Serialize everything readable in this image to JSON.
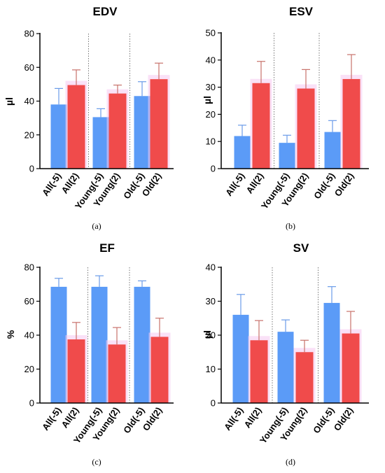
{
  "colors": {
    "left_bar": "#5B9BF7",
    "right_bar": "#F04B4B",
    "left_error": "#6A9BE8",
    "right_error": "#C8726B",
    "glow": "#F6C8F0"
  },
  "chart_data": [
    {
      "type": "bar",
      "title": "EDV",
      "ylabel": "µl",
      "caption": "(a)",
      "ylim": [
        0,
        80
      ],
      "yticks": [
        0,
        20,
        40,
        60,
        80
      ],
      "grid": false,
      "categories": [
        "All(-5)",
        "All(2)",
        "Young(-5)",
        "Young(2)",
        "Old(-5)",
        "Old(2)"
      ],
      "values": [
        38,
        49.5,
        30.5,
        44.5,
        43,
        53
      ],
      "errors": [
        9.5,
        9,
        5,
        5,
        8.5,
        9.5
      ],
      "bar_colors": [
        "left_bar",
        "right_bar",
        "left_bar",
        "right_bar",
        "left_bar",
        "right_bar"
      ]
    },
    {
      "type": "bar",
      "title": "ESV",
      "ylabel": "µl",
      "caption": "(b)",
      "ylim": [
        0,
        50
      ],
      "yticks": [
        0,
        10,
        20,
        30,
        40,
        50
      ],
      "grid": false,
      "categories": [
        "All(-5)",
        "All(2)",
        "Young(-5)",
        "Young(2)",
        "Old(-5)",
        "Old(2)"
      ],
      "values": [
        12,
        31.5,
        9.5,
        29.5,
        13.5,
        33
      ],
      "errors": [
        4,
        8,
        2.8,
        7,
        4.2,
        9
      ],
      "bar_colors": [
        "left_bar",
        "right_bar",
        "left_bar",
        "right_bar",
        "left_bar",
        "right_bar"
      ]
    },
    {
      "type": "bar",
      "title": "EF",
      "ylabel": "%",
      "caption": "(c)",
      "ylim": [
        0,
        80
      ],
      "yticks": [
        0,
        20,
        40,
        60,
        80
      ],
      "grid": false,
      "categories": [
        "All(-5)",
        "All(2)",
        "Young(-5)",
        "Young(2)",
        "Old(-5)",
        "Old(2)"
      ],
      "values": [
        68.5,
        37.5,
        68.5,
        34.5,
        68.5,
        39
      ],
      "errors": [
        5,
        10,
        6.5,
        10,
        3.5,
        11
      ],
      "bar_colors": [
        "left_bar",
        "right_bar",
        "left_bar",
        "right_bar",
        "left_bar",
        "right_bar"
      ]
    },
    {
      "type": "bar",
      "title": "SV",
      "ylabel": "µl",
      "caption": "(d)",
      "ylim": [
        0,
        40
      ],
      "yticks": [
        0,
        10,
        20,
        30,
        40
      ],
      "grid": false,
      "categories": [
        "All(-5)",
        "All(2)",
        "Young(-5)",
        "Young(2)",
        "Old(-5)",
        "Old(2)"
      ],
      "values": [
        26,
        18.5,
        21,
        15,
        29.5,
        20.5
      ],
      "errors": [
        6,
        5.8,
        3.5,
        3.5,
        4.8,
        6.5
      ],
      "bar_colors": [
        "left_bar",
        "right_bar",
        "left_bar",
        "right_bar",
        "left_bar",
        "right_bar"
      ]
    }
  ]
}
